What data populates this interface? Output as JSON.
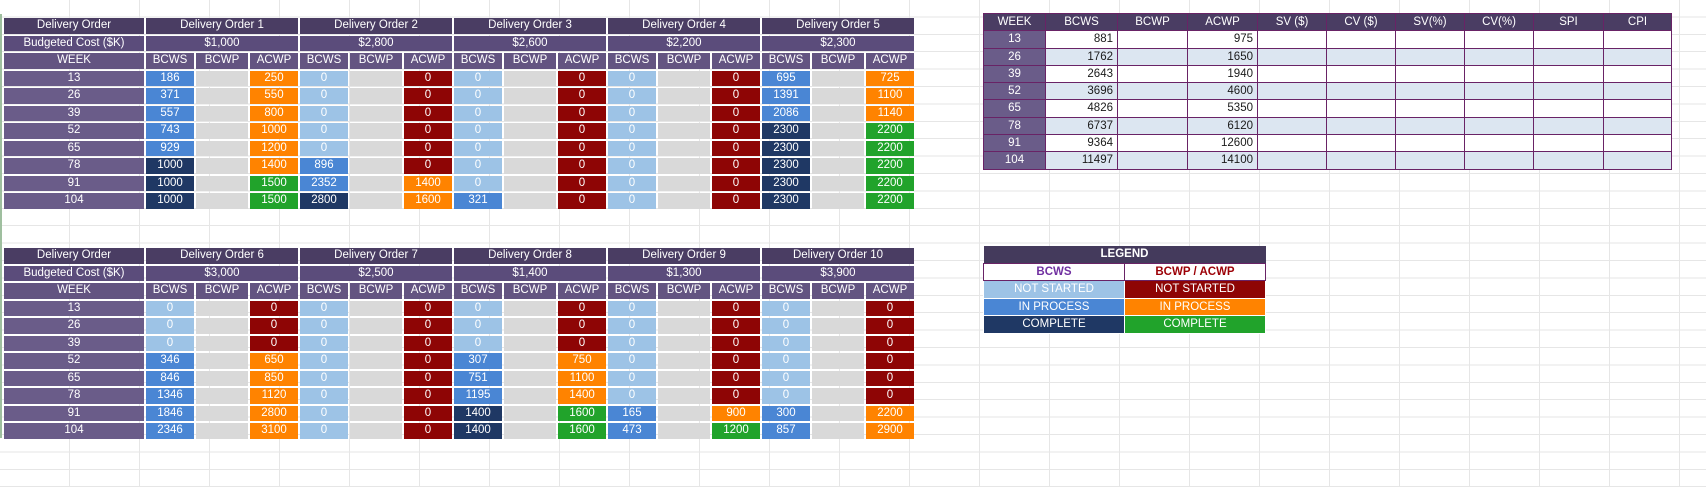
{
  "colors": {
    "hdr1": "#4A3D63",
    "hdr2": "#5B4C7B",
    "hdr3": "#635481",
    "weekcell": "#6A5C89",
    "bcws-ns": "#9DC3E6",
    "bcws-ip": "#4A86D4",
    "bcws-c": "#1F3864",
    "acwp-ns": "#8E0505",
    "acwp-ip": "#FF8300",
    "acwp-c": "#21A32B",
    "empty": "#D9D9D9",
    "sum-border": "#692366",
    "sum-alt": "#DCE6F1",
    "leg-hdr": "#443A5C",
    "leg-bcws-text": "#7030A0",
    "leg-acwp-text": "#9C0006"
  },
  "do_tables": [
    {
      "corner_label": "Delivery Order",
      "budget_label": "Budgeted Cost ($K)",
      "week_label": "WEEK",
      "sub_headers": [
        "BCWS",
        "BCWP",
        "ACWP"
      ],
      "weeks": [
        "13",
        "26",
        "39",
        "52",
        "65",
        "78",
        "91",
        "104"
      ],
      "orders": [
        {
          "title": "Delivery Order 1",
          "budget": "$1,000",
          "bcws": [
            "186",
            "371",
            "557",
            "743",
            "929",
            "1000",
            "1000",
            "1000"
          ],
          "bcws_state": [
            "ip",
            "ip",
            "ip",
            "ip",
            "ip",
            "c",
            "c",
            "c"
          ],
          "acwp": [
            "250",
            "550",
            "800",
            "1000",
            "1200",
            "1400",
            "1500",
            "1500"
          ],
          "acwp_state": [
            "ip",
            "ip",
            "ip",
            "ip",
            "ip",
            "ip",
            "c",
            "c"
          ]
        },
        {
          "title": "Delivery Order 2",
          "budget": "$2,800",
          "bcws": [
            "0",
            "0",
            "0",
            "0",
            "0",
            "896",
            "2352",
            "2800"
          ],
          "bcws_state": [
            "ns",
            "ns",
            "ns",
            "ns",
            "ns",
            "ip",
            "ip",
            "c"
          ],
          "acwp": [
            "0",
            "0",
            "0",
            "0",
            "0",
            "0",
            "1400",
            "1600"
          ],
          "acwp_state": [
            "ns",
            "ns",
            "ns",
            "ns",
            "ns",
            "ns",
            "ip",
            "ip"
          ]
        },
        {
          "title": "Delivery Order 3",
          "budget": "$2,600",
          "bcws": [
            "0",
            "0",
            "0",
            "0",
            "0",
            "0",
            "0",
            "321"
          ],
          "bcws_state": [
            "ns",
            "ns",
            "ns",
            "ns",
            "ns",
            "ns",
            "ns",
            "ip"
          ],
          "acwp": [
            "0",
            "0",
            "0",
            "0",
            "0",
            "0",
            "0",
            "0"
          ],
          "acwp_state": [
            "ns",
            "ns",
            "ns",
            "ns",
            "ns",
            "ns",
            "ns",
            "ns"
          ]
        },
        {
          "title": "Delivery Order 4",
          "budget": "$2,200",
          "bcws": [
            "0",
            "0",
            "0",
            "0",
            "0",
            "0",
            "0",
            "0"
          ],
          "bcws_state": [
            "ns",
            "ns",
            "ns",
            "ns",
            "ns",
            "ns",
            "ns",
            "ns"
          ],
          "acwp": [
            "0",
            "0",
            "0",
            "0",
            "0",
            "0",
            "0",
            "0"
          ],
          "acwp_state": [
            "ns",
            "ns",
            "ns",
            "ns",
            "ns",
            "ns",
            "ns",
            "ns"
          ]
        },
        {
          "title": "Delivery Order 5",
          "budget": "$2,300",
          "bcws": [
            "695",
            "1391",
            "2086",
            "2300",
            "2300",
            "2300",
            "2300",
            "2300"
          ],
          "bcws_state": [
            "ip",
            "ip",
            "ip",
            "c",
            "c",
            "c",
            "c",
            "c"
          ],
          "acwp": [
            "725",
            "1100",
            "1140",
            "2200",
            "2200",
            "2200",
            "2200",
            "2200"
          ],
          "acwp_state": [
            "ip",
            "ip",
            "ip",
            "c",
            "c",
            "c",
            "c",
            "c"
          ]
        }
      ]
    },
    {
      "corner_label": "Delivery Order",
      "budget_label": "Budgeted Cost ($K)",
      "week_label": "WEEK",
      "sub_headers": [
        "BCWS",
        "BCWP",
        "ACWP"
      ],
      "weeks": [
        "13",
        "26",
        "39",
        "52",
        "65",
        "78",
        "91",
        "104"
      ],
      "orders": [
        {
          "title": "Delivery Order 6",
          "budget": "$3,000",
          "bcws": [
            "0",
            "0",
            "0",
            "346",
            "846",
            "1346",
            "1846",
            "2346"
          ],
          "bcws_state": [
            "ns",
            "ns",
            "ns",
            "ip",
            "ip",
            "ip",
            "ip",
            "ip"
          ],
          "acwp": [
            "0",
            "0",
            "0",
            "650",
            "850",
            "1120",
            "2800",
            "3100"
          ],
          "acwp_state": [
            "ns",
            "ns",
            "ns",
            "ip",
            "ip",
            "ip",
            "ip",
            "ip"
          ]
        },
        {
          "title": "Delivery Order 7",
          "budget": "$2,500",
          "bcws": [
            "0",
            "0",
            "0",
            "0",
            "0",
            "0",
            "0",
            "0"
          ],
          "bcws_state": [
            "ns",
            "ns",
            "ns",
            "ns",
            "ns",
            "ns",
            "ns",
            "ns"
          ],
          "acwp": [
            "0",
            "0",
            "0",
            "0",
            "0",
            "0",
            "0",
            "0"
          ],
          "acwp_state": [
            "ns",
            "ns",
            "ns",
            "ns",
            "ns",
            "ns",
            "ns",
            "ns"
          ]
        },
        {
          "title": "Delivery Order 8",
          "budget": "$1,400",
          "bcws": [
            "0",
            "0",
            "0",
            "307",
            "751",
            "1195",
            "1400",
            "1400"
          ],
          "bcws_state": [
            "ns",
            "ns",
            "ns",
            "ip",
            "ip",
            "ip",
            "c",
            "c"
          ],
          "acwp": [
            "0",
            "0",
            "0",
            "750",
            "1100",
            "1400",
            "1600",
            "1600"
          ],
          "acwp_state": [
            "ns",
            "ns",
            "ns",
            "ip",
            "ip",
            "ip",
            "c",
            "c"
          ]
        },
        {
          "title": "Delivery Order 9",
          "budget": "$1,300",
          "bcws": [
            "0",
            "0",
            "0",
            "0",
            "0",
            "0",
            "165",
            "473"
          ],
          "bcws_state": [
            "ns",
            "ns",
            "ns",
            "ns",
            "ns",
            "ns",
            "ip",
            "ip"
          ],
          "acwp": [
            "0",
            "0",
            "0",
            "0",
            "0",
            "0",
            "900",
            "1200"
          ],
          "acwp_state": [
            "ns",
            "ns",
            "ns",
            "ns",
            "ns",
            "ns",
            "ip",
            "c"
          ]
        },
        {
          "title": "Delivery Order 10",
          "budget": "$3,900",
          "bcws": [
            "0",
            "0",
            "0",
            "0",
            "0",
            "0",
            "300",
            "857"
          ],
          "bcws_state": [
            "ns",
            "ns",
            "ns",
            "ns",
            "ns",
            "ns",
            "ip",
            "ip"
          ],
          "acwp": [
            "0",
            "0",
            "0",
            "0",
            "0",
            "0",
            "2200",
            "2900"
          ],
          "acwp_state": [
            "ns",
            "ns",
            "ns",
            "ns",
            "ns",
            "ns",
            "ip",
            "ip"
          ]
        }
      ]
    }
  ],
  "summary": {
    "headers": [
      "WEEK",
      "BCWS",
      "BCWP",
      "ACWP",
      "SV ($)",
      "CV ($)",
      "SV(%)",
      "CV(%)",
      "SPI",
      "CPI"
    ],
    "rows": [
      {
        "week": "13",
        "values": [
          "881",
          "",
          "975",
          "",
          "",
          "",
          "",
          "",
          ""
        ]
      },
      {
        "week": "26",
        "values": [
          "1762",
          "",
          "1650",
          "",
          "",
          "",
          "",
          "",
          ""
        ]
      },
      {
        "week": "39",
        "values": [
          "2643",
          "",
          "1940",
          "",
          "",
          "",
          "",
          "",
          ""
        ]
      },
      {
        "week": "52",
        "values": [
          "3696",
          "",
          "4600",
          "",
          "",
          "",
          "",
          "",
          ""
        ]
      },
      {
        "week": "65",
        "values": [
          "4826",
          "",
          "5350",
          "",
          "",
          "",
          "",
          "",
          ""
        ]
      },
      {
        "week": "78",
        "values": [
          "6737",
          "",
          "6120",
          "",
          "",
          "",
          "",
          "",
          ""
        ]
      },
      {
        "week": "91",
        "values": [
          "9364",
          "",
          "12600",
          "",
          "",
          "",
          "",
          "",
          ""
        ]
      },
      {
        "week": "104",
        "values": [
          "11497",
          "",
          "14100",
          "",
          "",
          "",
          "",
          "",
          ""
        ]
      }
    ]
  },
  "legend": {
    "title": "LEGEND",
    "columns": [
      {
        "header": "BCWS",
        "items": [
          {
            "label": "NOT STARTED",
            "state": "c-bns"
          },
          {
            "label": "IN PROCESS",
            "state": "c-bip"
          },
          {
            "label": "COMPLETE",
            "state": "c-bc"
          }
        ]
      },
      {
        "header": "BCWP / ACWP",
        "items": [
          {
            "label": "NOT STARTED",
            "state": "c-ans"
          },
          {
            "label": "IN PROCESS",
            "state": "c-aip"
          },
          {
            "label": "COMPLETE",
            "state": "c-ac"
          }
        ]
      }
    ]
  }
}
